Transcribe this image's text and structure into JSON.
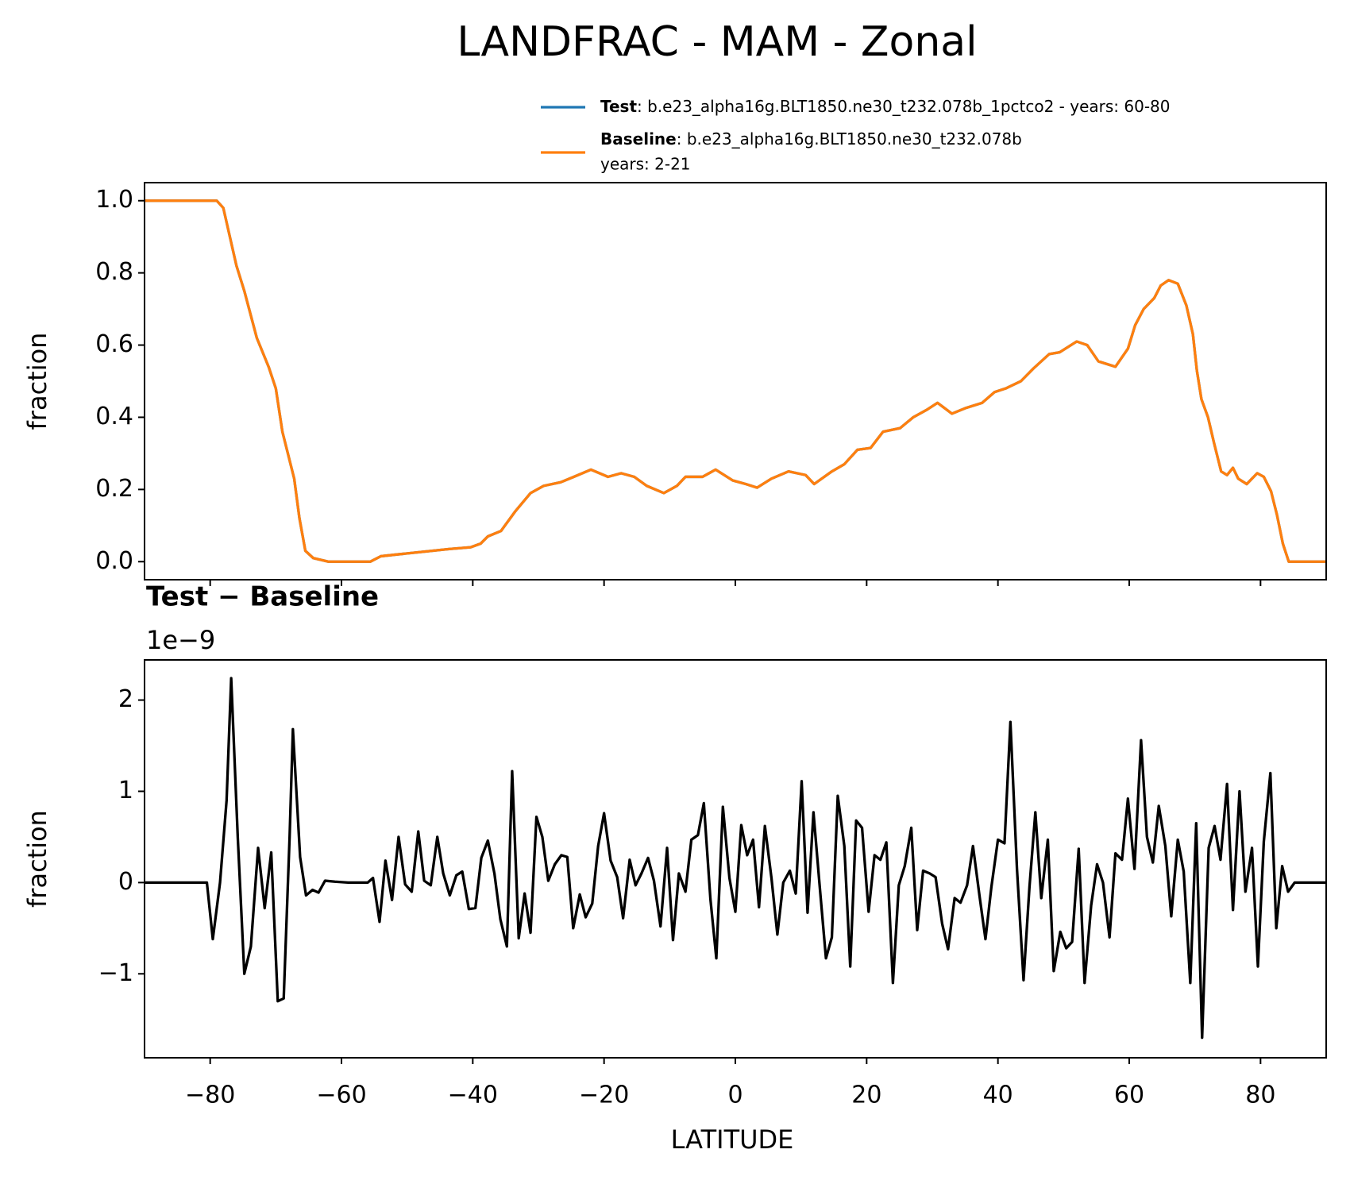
{
  "chart_data": [
    {
      "type": "line",
      "title": "LANDFRAC - MAM - Zonal",
      "ylabel": "fraction",
      "legend": "upper right",
      "x": [
        -90,
        -85,
        -80,
        -79,
        -78,
        -77,
        -76,
        -74.8,
        -72.9,
        -71.1,
        -70,
        -69,
        -67.2,
        -66.4,
        -65.5,
        -64.3,
        -62,
        -55.6,
        -54,
        -51.5,
        -48.8,
        -46.2,
        -43.6,
        -40.3,
        -38.8,
        -37.7,
        -35.7,
        -33.5,
        -31.2,
        -29.2,
        -26.6,
        -24.6,
        -22,
        -19.4,
        -17.4,
        -15.4,
        -13.5,
        -10.9,
        -8.9,
        -7.6,
        -5,
        -3,
        -0.4,
        1.6,
        3.3,
        5.5,
        8.1,
        10.7,
        12,
        14.7,
        16.6,
        18.6,
        20.6,
        22.5,
        25.1,
        27.1,
        29.1,
        30.8,
        33,
        35,
        37.6,
        39.5,
        41.2,
        43.5,
        45.4,
        47.8,
        49.4,
        52,
        53.6,
        55.3,
        57.9,
        59.8,
        60.9,
        62.2,
        63.8,
        64.8,
        66,
        67.4,
        68.7,
        69.7,
        70.3,
        71,
        72,
        72.9,
        74,
        74.9,
        75.8,
        76.6,
        77.9,
        79.5,
        80.5,
        81.6,
        82.5,
        83.4,
        84.3,
        90
      ],
      "series": [
        {
          "name": "Test",
          "description": [
            ": b.e23_alpha16g.BLT1850.ne30_t232.078b_1pctco2 - years: 60-80"
          ],
          "color": "#1f77b4",
          "values": [
            1.0,
            1.0,
            1.0,
            1.0,
            0.98,
            0.9,
            0.82,
            0.75,
            0.62,
            0.54,
            0.48,
            0.36,
            0.23,
            0.12,
            0.03,
            0.01,
            0.0,
            0.0,
            0.015,
            0.02,
            0.025,
            0.03,
            0.035,
            0.04,
            0.05,
            0.07,
            0.085,
            0.14,
            0.19,
            0.21,
            0.22,
            0.235,
            0.255,
            0.235,
            0.245,
            0.235,
            0.21,
            0.19,
            0.21,
            0.235,
            0.235,
            0.255,
            0.225,
            0.215,
            0.205,
            0.23,
            0.25,
            0.24,
            0.215,
            0.25,
            0.27,
            0.31,
            0.315,
            0.36,
            0.37,
            0.4,
            0.42,
            0.44,
            0.41,
            0.425,
            0.44,
            0.47,
            0.48,
            0.5,
            0.535,
            0.575,
            0.58,
            0.61,
            0.6,
            0.555,
            0.54,
            0.59,
            0.655,
            0.7,
            0.73,
            0.765,
            0.78,
            0.77,
            0.71,
            0.63,
            0.53,
            0.45,
            0.4,
            0.33,
            0.25,
            0.24,
            0.26,
            0.23,
            0.215,
            0.245,
            0.235,
            0.195,
            0.13,
            0.05,
            0.0,
            0.0
          ]
        },
        {
          "name": "Baseline",
          "description": [
            ": b.e23_alpha16g.BLT1850.ne30_t232.078b",
            "years: 2-21"
          ],
          "color": "#ff7f0e",
          "values": [
            1.0,
            1.0,
            1.0,
            1.0,
            0.98,
            0.9,
            0.82,
            0.75,
            0.62,
            0.54,
            0.48,
            0.36,
            0.23,
            0.12,
            0.03,
            0.01,
            0.0,
            0.0,
            0.015,
            0.02,
            0.025,
            0.03,
            0.035,
            0.04,
            0.05,
            0.07,
            0.085,
            0.14,
            0.19,
            0.21,
            0.22,
            0.235,
            0.255,
            0.235,
            0.245,
            0.235,
            0.21,
            0.19,
            0.21,
            0.235,
            0.235,
            0.255,
            0.225,
            0.215,
            0.205,
            0.23,
            0.25,
            0.24,
            0.215,
            0.25,
            0.27,
            0.31,
            0.315,
            0.36,
            0.37,
            0.4,
            0.42,
            0.44,
            0.41,
            0.425,
            0.44,
            0.47,
            0.48,
            0.5,
            0.535,
            0.575,
            0.58,
            0.61,
            0.6,
            0.555,
            0.54,
            0.59,
            0.655,
            0.7,
            0.73,
            0.765,
            0.78,
            0.77,
            0.71,
            0.63,
            0.53,
            0.45,
            0.4,
            0.33,
            0.25,
            0.24,
            0.26,
            0.23,
            0.215,
            0.245,
            0.235,
            0.195,
            0.13,
            0.05,
            0.0,
            0.0
          ]
        }
      ],
      "xlim": [
        -90,
        90
      ],
      "xticks": [
        -80,
        -60,
        -40,
        -20,
        0,
        20,
        40,
        60,
        80
      ],
      "show_xtick_labels": false,
      "ylim": [
        -0.05,
        1.05
      ],
      "yticks": [
        {
          "value": 0,
          "label": "0.0"
        },
        0.2,
        0.4,
        0.6,
        0.8,
        {
          "value": 1,
          "label": "1.0"
        }
      ]
    },
    {
      "type": "line",
      "title": "Test − Baseline",
      "offset_text": "1e−9",
      "xlabel": "LATITUDE",
      "ylabel": "fraction",
      "color": "#000000",
      "x": [
        -90,
        -85,
        -80.5,
        -79.6,
        -78.5,
        -77.5,
        -76.8,
        -75.8,
        -74.8,
        -73.8,
        -72.7,
        -71.7,
        -70.7,
        -69.7,
        -68.8,
        -67.9,
        -67.4,
        -66.3,
        -65.4,
        -64.4,
        -63.5,
        -62.5,
        -61,
        -59,
        -56,
        -55.2,
        -54.2,
        -53.3,
        -52.3,
        -51.3,
        -50.3,
        -49.3,
        -48.3,
        -47.4,
        -46.4,
        -45.4,
        -44.5,
        -43.5,
        -42.5,
        -41.6,
        -40.6,
        -39.6,
        -38.7,
        -37.7,
        -36.7,
        -35.8,
        -34.8,
        -34,
        -33,
        -32.1,
        -31.2,
        -30.3,
        -29.4,
        -28.5,
        -27.5,
        -26.5,
        -25.6,
        -24.7,
        -23.7,
        -22.8,
        -21.8,
        -20.9,
        -20,
        -19,
        -18,
        -17.1,
        -16.1,
        -15.2,
        -14.3,
        -13.3,
        -12.4,
        -11.4,
        -10.4,
        -9.5,
        -8.6,
        -7.6,
        -6.7,
        -5.7,
        -4.8,
        -3.8,
        -2.9,
        -1.9,
        -0.9,
        0,
        0.9,
        1.8,
        2.7,
        3.6,
        4.5,
        5.5,
        6.4,
        7.3,
        8.3,
        9.2,
        10.1,
        11,
        11.9,
        12.8,
        13.8,
        14.7,
        15.6,
        16.6,
        17.5,
        18.4,
        19.3,
        20.3,
        21.2,
        22.1,
        23,
        24,
        24.9,
        25.8,
        26.8,
        27.7,
        28.6,
        29.6,
        30.5,
        31.5,
        32.4,
        33.4,
        34.3,
        35.3,
        36.2,
        37.2,
        38.1,
        39,
        40,
        41,
        41.9,
        42.9,
        43.9,
        44.8,
        45.7,
        46.6,
        47.6,
        48.5,
        49.5,
        50.4,
        51.3,
        52.3,
        53.2,
        54.2,
        55.1,
        56,
        57,
        57.9,
        58.9,
        59.8,
        60.8,
        61.8,
        62.7,
        63.6,
        64.5,
        65.5,
        66.4,
        67.4,
        68.3,
        69.3,
        70.2,
        71.1,
        72.1,
        73,
        73.9,
        74.9,
        75.8,
        76.8,
        77.7,
        78.7,
        79.6,
        80.5,
        81.5,
        82.4,
        83.3,
        84.2,
        85.2,
        90
      ],
      "values": [
        0,
        0,
        0,
        -0.62,
        0,
        0.9,
        2.24,
        0.5,
        -1.0,
        -0.7,
        0.38,
        -0.28,
        0.33,
        -1.3,
        -1.27,
        0.5,
        1.68,
        0.28,
        -0.14,
        -0.08,
        -0.11,
        0.02,
        0.01,
        0,
        0,
        0.05,
        -0.43,
        0.24,
        -0.19,
        0.5,
        -0.02,
        -0.1,
        0.56,
        0.02,
        -0.03,
        0.5,
        0.1,
        -0.14,
        0.08,
        0.12,
        -0.29,
        -0.28,
        0.27,
        0.46,
        0.1,
        -0.4,
        -0.7,
        1.22,
        -0.61,
        -0.12,
        -0.55,
        0.72,
        0.5,
        0.02,
        0.2,
        0.3,
        0.28,
        -0.5,
        -0.13,
        -0.38,
        -0.23,
        0.4,
        0.76,
        0.24,
        0.06,
        -0.39,
        0.25,
        -0.03,
        0.1,
        0.27,
        0.02,
        -0.48,
        0.38,
        -0.63,
        0.1,
        -0.1,
        0.47,
        0.52,
        0.87,
        -0.18,
        -0.83,
        0.83,
        0.05,
        -0.32,
        0.63,
        0.3,
        0.47,
        -0.27,
        0.62,
        0.05,
        -0.57,
        0,
        0.13,
        -0.12,
        1.11,
        -0.33,
        0.77,
        0,
        -0.83,
        -0.6,
        0.95,
        0.4,
        -0.92,
        0.68,
        0.6,
        -0.32,
        0.3,
        0.25,
        0.44,
        -1.1,
        -0.03,
        0.18,
        0.6,
        -0.52,
        0.13,
        0.1,
        0.06,
        -0.45,
        -0.73,
        -0.17,
        -0.22,
        -0.03,
        0.4,
        -0.15,
        -0.62,
        -0.05,
        0.47,
        0.43,
        1.76,
        0.15,
        -1.07,
        -0.05,
        0.77,
        -0.17,
        0.47,
        -0.97,
        -0.54,
        -0.72,
        -0.65,
        0.37,
        -1.1,
        -0.25,
        0.2,
        0,
        -0.6,
        0.32,
        0.25,
        0.92,
        0.15,
        1.56,
        0.5,
        0.22,
        0.84,
        0.4,
        -0.37,
        0.47,
        0.12,
        -1.1,
        0.65,
        -1.7,
        0.38,
        0.62,
        0.25,
        1.08,
        -0.3,
        1.0,
        -0.1,
        0.38,
        -0.92,
        0.45,
        1.2,
        -0.5,
        0.18,
        -0.1,
        0,
        0
      ],
      "xlim": [
        -90,
        90
      ],
      "xticks": [
        {
          "value": -80,
          "label": "−80"
        },
        {
          "value": -60,
          "label": "−60"
        },
        {
          "value": -40,
          "label": "−40"
        },
        {
          "value": -20,
          "label": "−20"
        },
        0,
        20,
        40,
        60,
        80
      ],
      "show_xtick_labels": true,
      "ylim": [
        -1.92,
        2.44
      ],
      "yticks": [
        {
          "value": -1,
          "label": "−1"
        },
        0,
        1,
        2
      ]
    }
  ]
}
